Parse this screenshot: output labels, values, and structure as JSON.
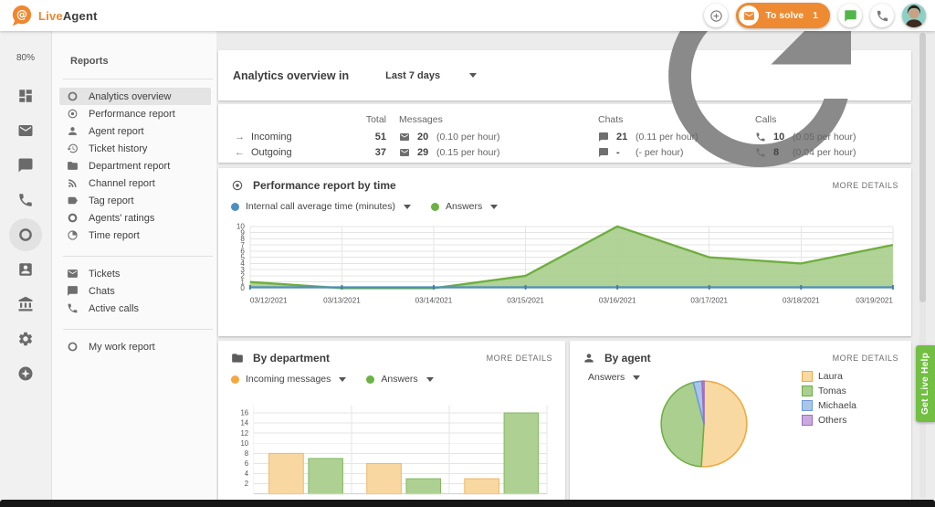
{
  "brand": {
    "live": "Live",
    "agent": "Agent"
  },
  "topbar": {
    "to_solve_label": "To solve",
    "to_solve_count": "1"
  },
  "rail": {
    "usage": "80%"
  },
  "sidebar": {
    "title": "Reports",
    "groups": [
      {
        "items": [
          {
            "icon": "ring",
            "label": "Analytics overview",
            "active": true
          },
          {
            "icon": "target",
            "label": "Performance report"
          },
          {
            "icon": "person",
            "label": "Agent report"
          },
          {
            "icon": "history",
            "label": "Ticket history"
          },
          {
            "icon": "folder",
            "label": "Department report"
          },
          {
            "icon": "rss",
            "label": "Channel report"
          },
          {
            "icon": "tag",
            "label": "Tag report"
          },
          {
            "icon": "ratings",
            "label": "Agents' ratings"
          },
          {
            "icon": "timepie",
            "label": "Time report"
          }
        ]
      },
      {
        "items": [
          {
            "icon": "mail",
            "label": "Tickets"
          },
          {
            "icon": "chat",
            "label": "Chats"
          },
          {
            "icon": "phone",
            "label": "Active calls"
          }
        ]
      },
      {
        "items": [
          {
            "icon": "ring",
            "label": "My work report"
          }
        ]
      }
    ]
  },
  "overview": {
    "title": "Analytics overview in",
    "range": "Last 7 days"
  },
  "stats": {
    "headers": {
      "total": "Total",
      "messages": "Messages",
      "chats": "Chats",
      "calls": "Calls"
    },
    "rows": [
      {
        "arrow": "→",
        "label": "Incoming",
        "total": "51",
        "messages_value": "20",
        "messages_rate": "(0.10 per hour)",
        "chats_value": "21",
        "chats_rate": "(0.11 per hour)",
        "calls_value": "10",
        "calls_rate": "(0.05 per hour)"
      },
      {
        "arrow": "←",
        "label": "Outgoing",
        "total": "37",
        "messages_value": "29",
        "messages_rate": "(0.15 per hour)",
        "chats_value": "-",
        "chats_rate": "(- per hour)",
        "calls_value": "8",
        "calls_rate": "(0.04 per hour)"
      }
    ]
  },
  "performance": {
    "title": "Performance report by time",
    "more": "MORE DETAILS",
    "legend": [
      {
        "label": "Internal call average time (minutes)",
        "color": "#4e8fbe"
      },
      {
        "label": "Answers",
        "color": "#6cb143"
      }
    ]
  },
  "department": {
    "title": "By department",
    "more": "MORE DETAILS",
    "legend": [
      {
        "label": "Incoming messages",
        "color": "#f5a83c"
      },
      {
        "label": "Answers",
        "color": "#6cb143"
      }
    ]
  },
  "agent": {
    "title": "By agent",
    "more": "MORE DETAILS",
    "filter": "Answers"
  },
  "help_tab": "Get Live Help",
  "chart_data": [
    {
      "type": "area",
      "title": "Performance report by time",
      "x": [
        "03/12/2021",
        "03/13/2021",
        "03/14/2021",
        "03/15/2021",
        "03/16/2021",
        "03/17/2021",
        "03/18/2021",
        "03/19/2021"
      ],
      "series": [
        {
          "name": "Internal call average time (minutes)",
          "color": "#4e8fbe",
          "values": [
            0,
            0,
            0,
            0,
            0,
            0,
            0,
            0
          ]
        },
        {
          "name": "Answers",
          "color": "#6fae3f",
          "fill": "#a9ce8c",
          "values": [
            1,
            0,
            0,
            2,
            10,
            5,
            4,
            7
          ]
        }
      ],
      "ylim": [
        0,
        10
      ],
      "yticks": [
        0,
        1,
        2,
        3,
        4,
        5,
        6,
        7,
        8,
        9,
        10
      ],
      "grid": true,
      "legend_position": "top-left"
    },
    {
      "type": "bar",
      "title": "By department",
      "categories": [
        "",
        "",
        ""
      ],
      "series": [
        {
          "name": "Incoming messages",
          "color": "#f8d8a0",
          "border": "#efb25e",
          "values": [
            8,
            6,
            3
          ]
        },
        {
          "name": "Answers",
          "color": "#aed092",
          "border": "#80b75d",
          "values": [
            7,
            3,
            16
          ]
        }
      ],
      "yticks": [
        2,
        4,
        6,
        8,
        10,
        12,
        14,
        16
      ],
      "ylim": [
        0,
        17
      ],
      "grid": true
    },
    {
      "type": "pie",
      "title": "By agent",
      "labels": [
        "Laura",
        "Tomas",
        "Michaela",
        "Others"
      ],
      "values": [
        51,
        45,
        3.3,
        0.7
      ],
      "colors": [
        "#f8d9a2",
        "#abcf8e",
        "#a9c6e8",
        "#c9aade"
      ],
      "border_colors": [
        "#f0a73e",
        "#6cae44",
        "#6b99d8",
        "#9e6bc8"
      ],
      "legend_position": "right"
    }
  ]
}
